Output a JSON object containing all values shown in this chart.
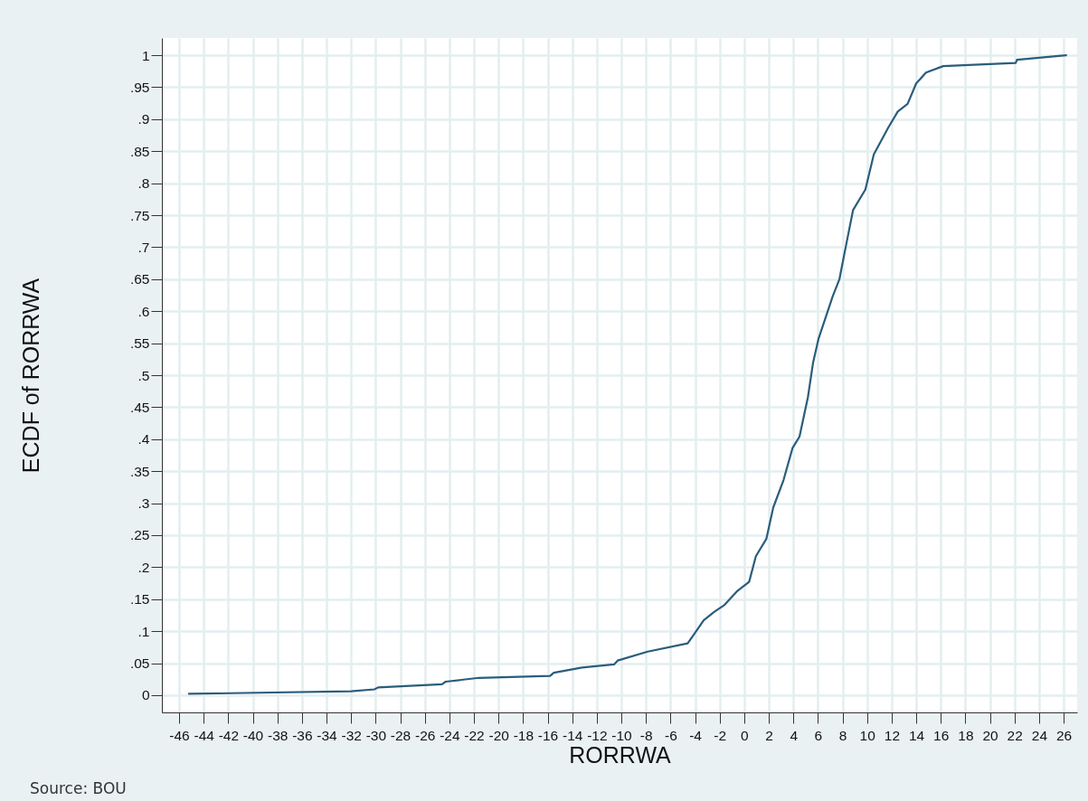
{
  "chart_data": {
    "type": "line",
    "xlabel": "RORRWA",
    "ylabel": "ECDF of RORRWA",
    "annotations": [
      "Source: BOU"
    ],
    "x": [
      -45.2,
      -32,
      -30.1,
      -29.8,
      -24.6,
      -24.3,
      -21.6,
      -15.8,
      -15.5,
      -13.2,
      -10.6,
      -10.3,
      -7.85,
      -4.6,
      -4.2,
      -3.3,
      -2.45,
      -1.6,
      -0.6,
      0.4,
      0.95,
      1.8,
      2.36,
      3.2,
      3.93,
      4.5,
      5.18,
      5.6,
      6.05,
      7.2,
      7.75,
      8.3,
      8.86,
      9.86,
      10.55,
      11.7,
      12.5,
      13.3,
      14,
      14.8,
      16.2,
      22.1,
      22.2,
      26.2
    ],
    "series": [
      {
        "color": "#2a5d7c",
        "values": [
          0.002,
          0.006,
          0.009,
          0.012,
          0.017,
          0.021,
          0.027,
          0.03,
          0.035,
          0.043,
          0.048,
          0.054,
          0.068,
          0.081,
          0.092,
          0.117,
          0.13,
          0.141,
          0.162,
          0.177,
          0.217,
          0.244,
          0.293,
          0.336,
          0.386,
          0.404,
          0.465,
          0.519,
          0.557,
          0.623,
          0.65,
          0.704,
          0.758,
          0.79,
          0.845,
          0.886,
          0.912,
          0.924,
          0.956,
          0.973,
          0.983,
          0.988,
          0.993,
          1.0
        ]
      }
    ],
    "xlim": [
      -47.4,
      27.1
    ],
    "ylim": [
      -0.027,
      1.027
    ],
    "xticks": [
      -46,
      -44,
      -42,
      -40,
      -38,
      -36,
      -34,
      -32,
      -30,
      -28,
      -26,
      -24,
      -22,
      -20,
      -18,
      -16,
      -14,
      -12,
      -10,
      -8,
      -6,
      -4,
      -2,
      0,
      2,
      4,
      6,
      8,
      10,
      12,
      14,
      16,
      18,
      20,
      22,
      24,
      26
    ],
    "yticks": [
      0,
      {
        "value": 0.05,
        "label": ".05"
      },
      {
        "value": 0.1,
        "label": ".1"
      },
      {
        "value": 0.15,
        "label": ".15"
      },
      {
        "value": 0.2,
        "label": ".2"
      },
      {
        "value": 0.25,
        "label": ".25"
      },
      {
        "value": 0.3,
        "label": ".3"
      },
      {
        "value": 0.35,
        "label": ".35"
      },
      {
        "value": 0.4,
        "label": ".4"
      },
      {
        "value": 0.45,
        "label": ".45"
      },
      {
        "value": 0.5,
        "label": ".5"
      },
      {
        "value": 0.55,
        "label": ".55"
      },
      {
        "value": 0.6,
        "label": ".6"
      },
      {
        "value": 0.65,
        "label": ".65"
      },
      {
        "value": 0.7,
        "label": ".7"
      },
      {
        "value": 0.75,
        "label": ".75"
      },
      {
        "value": 0.8,
        "label": ".8"
      },
      {
        "value": 0.85,
        "label": ".85"
      },
      {
        "value": 0.9,
        "label": ".9"
      },
      {
        "value": 0.95,
        "label": ".95"
      },
      1
    ],
    "grid": true,
    "marker": "none",
    "line_style": "solid"
  }
}
